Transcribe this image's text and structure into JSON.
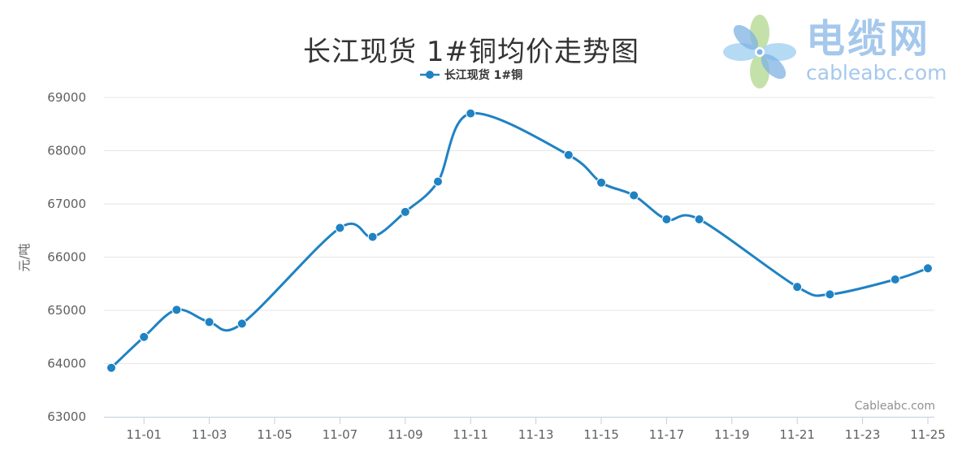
{
  "logo": {
    "name": "电缆网",
    "domain": "cableabc.com",
    "name_color": "#a5c8ec",
    "petal_colors": [
      "#7fb3e3",
      "#a7d3f2",
      "#b9dc9a",
      "#9ec8e8"
    ]
  },
  "watermark": "Cableabc.com",
  "colors": {
    "series": "#1f82c3",
    "grid": "#e6e6e6",
    "axis": "#c0d0e0",
    "tick_text": "#606060"
  },
  "chart_data": {
    "type": "line",
    "title": "长江现货 1#铜均价走势图",
    "ylabel": "元/吨",
    "xlabel": "",
    "ylim": [
      63000,
      69000
    ],
    "yticks": [
      "63000",
      "64000",
      "65000",
      "66000",
      "67000",
      "68000",
      "69000"
    ],
    "xticks": [
      "11-01",
      "11-03",
      "11-05",
      "11-07",
      "11-09",
      "11-11",
      "11-13",
      "11-15",
      "11-17",
      "11-19",
      "11-21",
      "11-23",
      "11-25"
    ],
    "grid": true,
    "legend": "top-center",
    "series": [
      {
        "name": "长江现货 1#铜",
        "points": [
          {
            "x": "10-31",
            "y": 63920
          },
          {
            "x": "11-01",
            "y": 64500
          },
          {
            "x": "11-02",
            "y": 65010
          },
          {
            "x": "11-03",
            "y": 64780
          },
          {
            "x": "11-04",
            "y": 64750
          },
          {
            "x": "11-07",
            "y": 66550
          },
          {
            "x": "11-08",
            "y": 66380
          },
          {
            "x": "11-09",
            "y": 66850
          },
          {
            "x": "11-10",
            "y": 67420
          },
          {
            "x": "11-11",
            "y": 68700
          },
          {
            "x": "11-14",
            "y": 67920
          },
          {
            "x": "11-15",
            "y": 67400
          },
          {
            "x": "11-16",
            "y": 67160
          },
          {
            "x": "11-17",
            "y": 66710
          },
          {
            "x": "11-18",
            "y": 66710
          },
          {
            "x": "11-21",
            "y": 65440
          },
          {
            "x": "11-22",
            "y": 65300
          },
          {
            "x": "11-24",
            "y": 65580
          },
          {
            "x": "11-25",
            "y": 65790
          }
        ]
      }
    ]
  }
}
